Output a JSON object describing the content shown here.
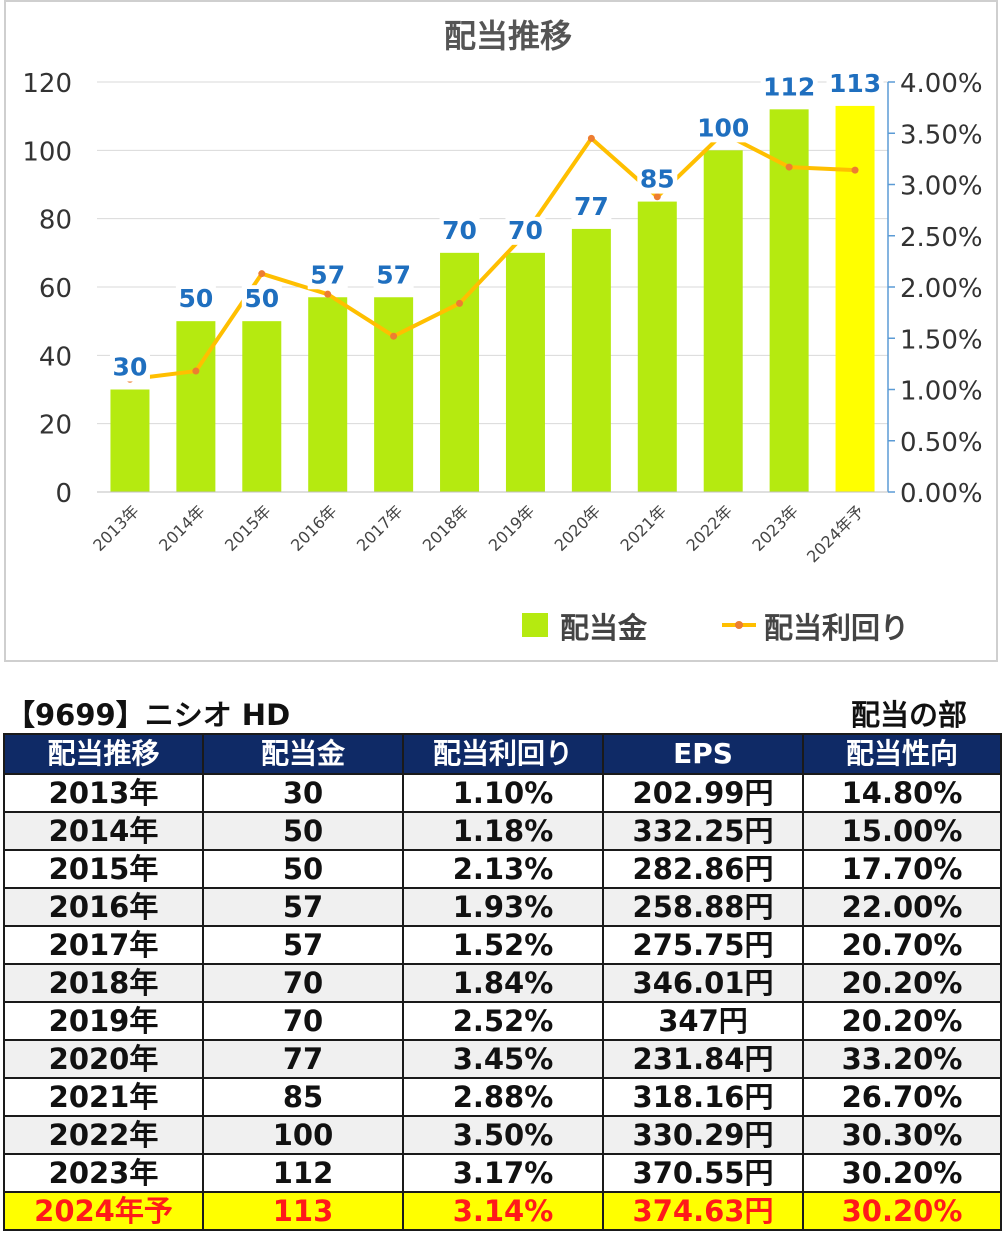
{
  "chart_data": {
    "type": "bar",
    "title": "配当推移",
    "categories": [
      "2013年",
      "2014年",
      "2015年",
      "2016年",
      "2017年",
      "2018年",
      "2019年",
      "2020年",
      "2021年",
      "2022年",
      "2023年",
      "2024年予"
    ],
    "series": [
      {
        "name": "配当金",
        "type": "bar",
        "axis": "left",
        "values": [
          30,
          50,
          50,
          57,
          57,
          70,
          70,
          77,
          85,
          100,
          112,
          113
        ],
        "color": "#b5ea10",
        "highlight_last_color": "#ffff00"
      },
      {
        "name": "配当利回り",
        "type": "line",
        "axis": "right",
        "values": [
          1.1,
          1.18,
          2.13,
          1.93,
          1.52,
          1.84,
          2.52,
          3.45,
          2.88,
          3.5,
          3.17,
          3.14
        ],
        "color": "#ffbf00",
        "marker_color": "#ed7d31"
      }
    ],
    "left_axis": {
      "min": 0,
      "max": 120,
      "step": 20,
      "ticks": [
        "0",
        "20",
        "40",
        "60",
        "80",
        "100",
        "120"
      ]
    },
    "right_axis": {
      "min": 0,
      "max": 4,
      "step": 0.5,
      "ticks": [
        "0.00%",
        "0.50%",
        "1.00%",
        "1.50%",
        "2.00%",
        "2.50%",
        "3.00%",
        "3.50%",
        "4.00%"
      ]
    },
    "bar_labels": [
      "30",
      "50",
      "50",
      "57",
      "57",
      "70",
      "70",
      "77",
      "85",
      "100",
      "112",
      "113"
    ],
    "label_color": "#1f6fbf",
    "grid": true,
    "legend_position": "bottom-right"
  },
  "table": {
    "code_title": "【9699】ニシオ HD",
    "section_title": "配当の部",
    "headers": [
      "配当推移",
      "配当金",
      "配当利回り",
      "EPS",
      "配当性向"
    ],
    "rows": [
      [
        "2013年",
        "30",
        "1.10%",
        "202.99円",
        "14.80%"
      ],
      [
        "2014年",
        "50",
        "1.18%",
        "332.25円",
        "15.00%"
      ],
      [
        "2015年",
        "50",
        "2.13%",
        "282.86円",
        "17.70%"
      ],
      [
        "2016年",
        "57",
        "1.93%",
        "258.88円",
        "22.00%"
      ],
      [
        "2017年",
        "57",
        "1.52%",
        "275.75円",
        "20.70%"
      ],
      [
        "2018年",
        "70",
        "1.84%",
        "346.01円",
        "20.20%"
      ],
      [
        "2019年",
        "70",
        "2.52%",
        "347円",
        "20.20%"
      ],
      [
        "2020年",
        "77",
        "3.45%",
        "231.84円",
        "33.20%"
      ],
      [
        "2021年",
        "85",
        "2.88%",
        "318.16円",
        "26.70%"
      ],
      [
        "2022年",
        "100",
        "3.50%",
        "330.29円",
        "30.30%"
      ],
      [
        "2023年",
        "112",
        "3.17%",
        "370.55円",
        "30.20%"
      ],
      [
        "2024年予",
        "113",
        "3.14%",
        "374.63円",
        "30.20%"
      ]
    ]
  }
}
